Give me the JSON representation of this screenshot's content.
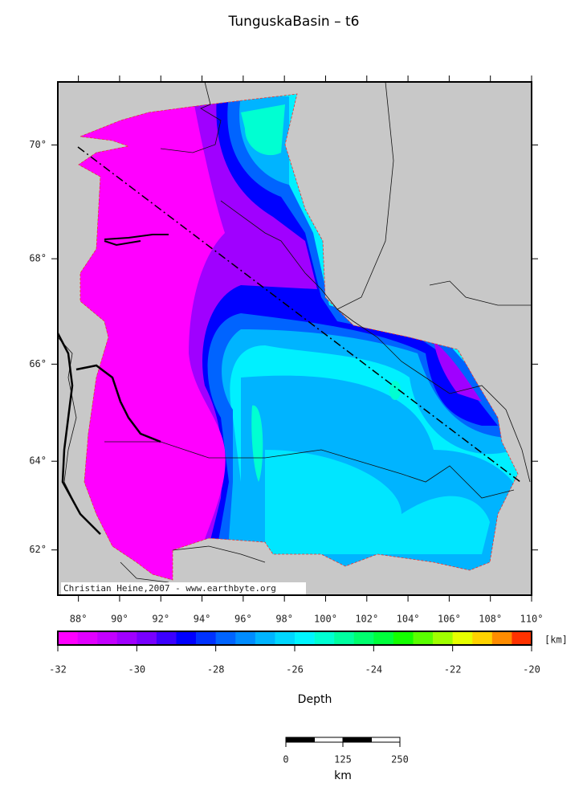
{
  "title": "TunguskaBasin – t6",
  "map": {
    "xlim": [
      87,
      110
    ],
    "ylim": [
      60.9,
      71.05
    ],
    "xticks": [
      {
        "value": 88,
        "label": "88°"
      },
      {
        "value": 90,
        "label": "90°"
      },
      {
        "value": 92,
        "label": "92°"
      },
      {
        "value": 94,
        "label": "94°"
      },
      {
        "value": 96,
        "label": "96°"
      },
      {
        "value": 98,
        "label": "98°"
      },
      {
        "value": 100,
        "label": "100°"
      },
      {
        "value": 102,
        "label": "102°"
      },
      {
        "value": 104,
        "label": "104°"
      },
      {
        "value": 106,
        "label": "106°"
      },
      {
        "value": 108,
        "label": "108°"
      },
      {
        "value": 110,
        "label": "110°"
      }
    ],
    "yticks": [
      {
        "value": 62,
        "label": "62°"
      },
      {
        "value": 64,
        "label": "64°"
      },
      {
        "value": 66,
        "label": "66°"
      },
      {
        "value": 68,
        "label": "68°"
      },
      {
        "value": 70,
        "label": "70°"
      }
    ],
    "credit": "Christian Heine,2007 - www.earthbyte.org"
  },
  "colorbar": {
    "lim": [
      -32,
      -20
    ],
    "ticks": [
      -32,
      -30,
      -28,
      -26,
      -24,
      -22,
      -20
    ],
    "unit": "[km]",
    "label": "Depth",
    "colors": [
      "#ff00ff",
      "#e100ff",
      "#c300ff",
      "#a000ff",
      "#7800ff",
      "#3c00ff",
      "#0000ff",
      "#0032ff",
      "#0064ff",
      "#008cff",
      "#00b4ff",
      "#00d7ff",
      "#00f5ff",
      "#00ffd2",
      "#00ffa0",
      "#00ff6e",
      "#00ff3c",
      "#14ff00",
      "#5aff00",
      "#a0ff00",
      "#e6ff00",
      "#ffd200",
      "#ff8c00",
      "#ff3200"
    ]
  },
  "scalebar": {
    "ticks": [
      0,
      125,
      250
    ],
    "unit": "km"
  }
}
